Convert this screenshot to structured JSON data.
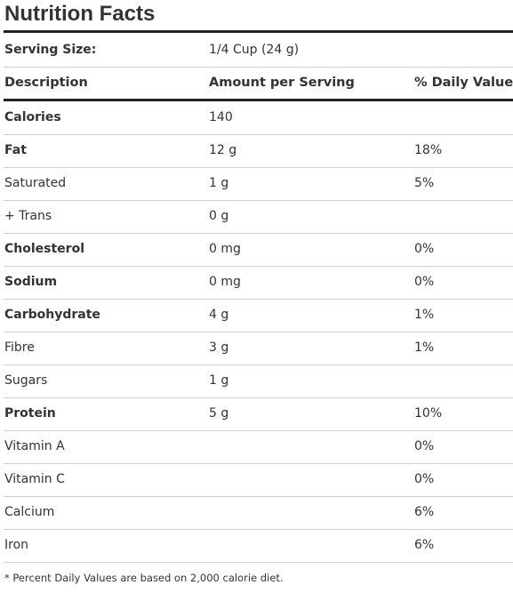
{
  "title": "Nutrition Facts",
  "serving": {
    "label": "Serving Size:",
    "value": "1/4 Cup (24 g)"
  },
  "columns": {
    "description": "Description",
    "amount": "Amount per Serving",
    "daily_value": "% Daily Value"
  },
  "rows": [
    {
      "name": "Calories",
      "amount": "140",
      "dv": "",
      "bold": true
    },
    {
      "name": "Fat",
      "amount": "12 g",
      "dv": "18%",
      "bold": true
    },
    {
      "name": "Saturated",
      "amount": "1 g",
      "dv": "5%",
      "bold": false
    },
    {
      "name": "+ Trans",
      "amount": "0 g",
      "dv": "",
      "bold": false
    },
    {
      "name": "Cholesterol",
      "amount": "0 mg",
      "dv": "0%",
      "bold": true
    },
    {
      "name": "Sodium",
      "amount": "0 mg",
      "dv": "0%",
      "bold": true
    },
    {
      "name": "Carbohydrate",
      "amount": "4 g",
      "dv": "1%",
      "bold": true
    },
    {
      "name": "Fibre",
      "amount": "3 g",
      "dv": "1%",
      "bold": false
    },
    {
      "name": "Sugars",
      "amount": "1 g",
      "dv": "",
      "bold": false
    },
    {
      "name": "Protein",
      "amount": "5 g",
      "dv": "10%",
      "bold": true
    },
    {
      "name": "Vitamin A",
      "amount": "",
      "dv": "0%",
      "bold": false
    },
    {
      "name": "Vitamin C",
      "amount": "",
      "dv": "0%",
      "bold": false
    },
    {
      "name": "Calcium",
      "amount": "",
      "dv": "6%",
      "bold": false
    },
    {
      "name": "Iron",
      "amount": "",
      "dv": "6%",
      "bold": false
    }
  ],
  "footnote": "* Percent Daily Values are based on 2,000 calorie diet.",
  "colors": {
    "text": "#333333",
    "rule": "#222222",
    "divider": "#cfcfcf"
  }
}
